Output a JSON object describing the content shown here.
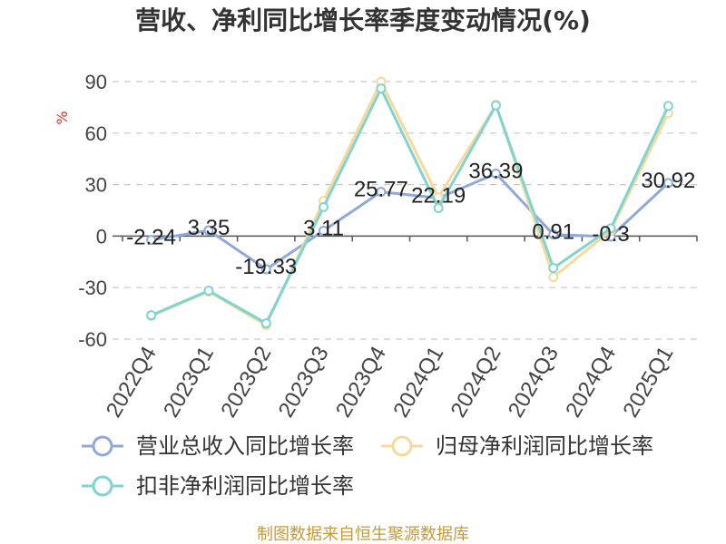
{
  "footer": "制图数据来自恒生聚源数据库",
  "chart_data": {
    "type": "line",
    "title": "营收、净利同比增长率季度变动情况(%)",
    "ylabel": "%",
    "categories": [
      "2022Q4",
      "2023Q1",
      "2023Q2",
      "2023Q3",
      "2023Q4",
      "2024Q1",
      "2024Q2",
      "2024Q3",
      "2024Q4",
      "2025Q1"
    ],
    "ylim": [
      -60,
      90
    ],
    "yticks": [
      90,
      60,
      30,
      0,
      -30,
      -60
    ],
    "grid": true,
    "legend": "bottom",
    "series": [
      {
        "name": "营业总收入同比增长率",
        "color": "#8fa9d8",
        "show_labels": true,
        "values": [
          -2.24,
          3.35,
          -19.33,
          3.11,
          25.77,
          22.19,
          36.39,
          0.91,
          -0.3,
          30.92
        ]
      },
      {
        "name": "归母净利润同比增长率",
        "color": "#f9d89b",
        "show_labels": false,
        "values": [
          -46.5,
          -32.3,
          -51.9,
          20.5,
          89.9,
          22.6,
          76.4,
          -23.9,
          3.2,
          71.6
        ]
      },
      {
        "name": "扣非净利润同比增长率",
        "color": "#7fd4d1",
        "show_labels": false,
        "values": [
          -46.1,
          -31.8,
          -50.8,
          16.9,
          86.0,
          16.3,
          76.2,
          -18.6,
          4.5,
          75.8
        ]
      }
    ]
  }
}
